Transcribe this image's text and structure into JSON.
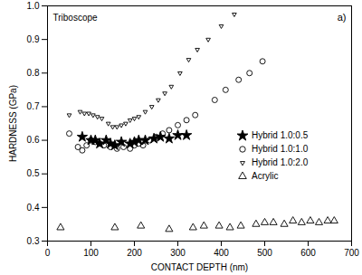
{
  "chart_data": {
    "type": "scatter",
    "x_label": "CONTACT DEPTH (nm)",
    "y_label": "HARDNESS (GPa)",
    "annotations": [
      "Triboscope",
      "a)"
    ],
    "xlim": [
      0,
      700
    ],
    "xticks": [
      0,
      100,
      200,
      300,
      400,
      500,
      600,
      700
    ],
    "ylim": [
      0.3,
      1
    ],
    "yticks": [
      0.3,
      0.4,
      0.5,
      0.6,
      0.7,
      0.8,
      0.9,
      {
        "value": 1,
        "label": "1.0"
      }
    ],
    "legend": "right",
    "series": [
      {
        "name": "Hybrid 1.0:0.5",
        "color": "#000000",
        "marker": "star",
        "x": [
          80,
          100,
          110,
          120,
          135,
          145,
          155,
          170,
          190,
          200,
          210,
          225,
          245,
          260,
          280,
          300,
          320
        ],
        "values": [
          0.61,
          0.6,
          0.6,
          0.59,
          0.6,
          0.59,
          0.585,
          0.595,
          0.59,
          0.595,
          0.6,
          0.6,
          0.605,
          0.61,
          0.605,
          0.615,
          0.615
        ]
      },
      {
        "name": "Hybrid 1.0:1.0",
        "color": "#000000",
        "marker": "circle",
        "x": [
          50,
          70,
          80,
          90,
          100,
          110,
          120,
          130,
          145,
          160,
          175,
          190,
          200,
          210,
          220,
          235,
          250,
          265,
          280,
          300,
          320,
          340,
          385,
          410,
          440,
          465,
          495
        ],
        "values": [
          0.62,
          0.58,
          0.57,
          0.585,
          0.6,
          0.595,
          0.59,
          0.585,
          0.58,
          0.575,
          0.58,
          0.575,
          0.585,
          0.59,
          0.585,
          0.6,
          0.61,
          0.62,
          0.63,
          0.645,
          0.66,
          0.675,
          0.72,
          0.75,
          0.78,
          0.8,
          0.835
        ]
      },
      {
        "name": "Hybrid 1.0:2.0",
        "color": "#000000",
        "marker": "triangle-down",
        "x": [
          50,
          75,
          85,
          95,
          105,
          115,
          125,
          140,
          150,
          160,
          170,
          180,
          190,
          200,
          210,
          225,
          240,
          255,
          270,
          285,
          305,
          325,
          345,
          370,
          400,
          430
        ],
        "values": [
          0.675,
          0.685,
          0.68,
          0.68,
          0.675,
          0.67,
          0.665,
          0.65,
          0.64,
          0.64,
          0.645,
          0.65,
          0.66,
          0.665,
          0.67,
          0.685,
          0.7,
          0.72,
          0.74,
          0.76,
          0.8,
          0.84,
          0.87,
          0.9,
          0.94,
          0.975
        ]
      },
      {
        "name": "Acrylic",
        "color": "#000000",
        "marker": "triangle",
        "x": [
          30,
          155,
          215,
          280,
          335,
          360,
          395,
          420,
          445,
          480,
          500,
          520,
          545,
          565,
          585,
          605,
          625,
          645,
          660
        ],
        "values": [
          0.34,
          0.34,
          0.345,
          0.335,
          0.34,
          0.345,
          0.345,
          0.34,
          0.345,
          0.35,
          0.355,
          0.355,
          0.35,
          0.36,
          0.355,
          0.36,
          0.355,
          0.36,
          0.36
        ]
      }
    ]
  }
}
